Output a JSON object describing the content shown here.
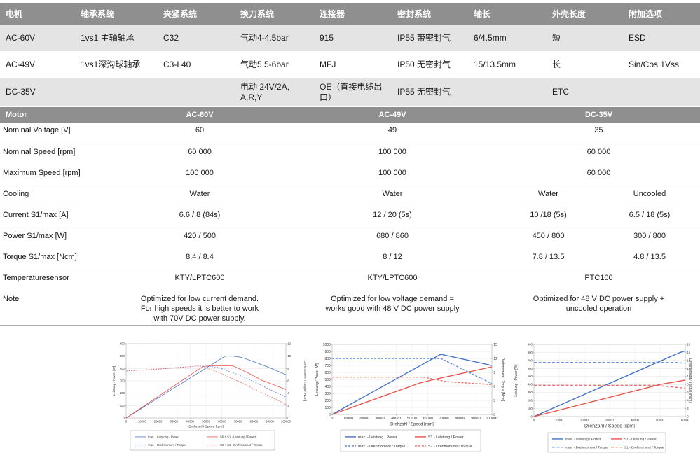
{
  "options_table": {
    "headers": [
      "电机",
      "轴承系统",
      "夹紧系统",
      "换刀系统",
      "连接器",
      "密封系统",
      "轴长",
      "外壳长度",
      "附加选项"
    ],
    "rows": [
      [
        "AC-60V",
        "1vs1 主轴轴承",
        "C32",
        "气动4-4.5bar",
        "915",
        "IP55 带密封气",
        "6/4.5mm",
        "短",
        "ESD"
      ],
      [
        "AC-49V",
        "1vs1深沟球轴承",
        "C3-L40",
        "气动5.5-6bar",
        "MFJ",
        "IP50 无密封气",
        "15/13.5mm",
        "长",
        "Sin/Cos 1Vss"
      ],
      [
        "DC-35V",
        "",
        "",
        "电动 24V/2A,\nA,R,Y",
        "OE（直接电缆出口）",
        "IP55 无密封气",
        "",
        "ETC",
        ""
      ]
    ]
  },
  "spec_table": {
    "header": {
      "label": "Motor",
      "cols": [
        "AC-60V",
        "AC-49V",
        "DC-35V"
      ]
    },
    "rows": [
      {
        "label": "Nominal Voltage [V]",
        "values": [
          "60",
          "49",
          "35"
        ]
      },
      {
        "label": "Nominal Speed [rpm]",
        "values": [
          "60 000",
          "100 000",
          "60 000"
        ]
      },
      {
        "label": "Maximum Speed [rpm]",
        "values": [
          "100 000",
          "100 000",
          "60 000"
        ]
      },
      {
        "label": "Cooling",
        "values": [
          "Water",
          "Water",
          "Water",
          "Uncooled"
        ]
      },
      {
        "label": "Current S1/max [A]",
        "values": [
          "6.6 / 8 (84s)",
          "12 / 20 (5s)",
          "10 /18 (5s)",
          "6.5 / 18 (5s)"
        ]
      },
      {
        "label": "Power S1/max [W]",
        "values": [
          "420 / 500",
          "680 / 860",
          "450 / 800",
          "300 / 800"
        ]
      },
      {
        "label": "Torque S1/max [Ncm]",
        "values": [
          "8.4 / 8.4",
          "8 / 12",
          "7.8 / 13.5",
          "4.8 / 13.5"
        ]
      },
      {
        "label": "Temperaturesensor",
        "values": [
          "KTY/LPTC600",
          "KTY/LPTC600",
          "PTC100"
        ]
      },
      {
        "label": "Note",
        "values": [
          "Optimized for low current demand.\nFor high speeds it is better to work\nwith 70V DC power supply.",
          "Optimized for low voltage demand =\nworks good with 48 V DC power supply",
          "Optimized for 48 V DC power supply +\nuncooled operation"
        ]
      }
    ]
  },
  "chart_data": [
    {
      "type": "line",
      "title": "AC-60V performance",
      "xlabel": "Drehzahl / Speed [rpm]",
      "ylabel_left": "Leistung / Power [W]",
      "ylabel_right": "Drehmoment / Torque [Ncm]",
      "x_range": [
        0,
        100000
      ],
      "x_step": 10000,
      "left_range": [
        0,
        600
      ],
      "left_step": 100,
      "right_range": [
        0,
        12
      ],
      "right_step": 2,
      "grid": true,
      "legend_position": "bottom",
      "series": [
        {
          "name": "max. - Leistung / Power",
          "axis": "left",
          "style": "solid",
          "color": "#4472c8",
          "points": [
            [
              0,
              0
            ],
            [
              62000,
              500
            ],
            [
              67000,
              500
            ],
            [
              72000,
              490
            ],
            [
              80000,
              455
            ],
            [
              90000,
              405
            ],
            [
              100000,
              350
            ]
          ]
        },
        {
          "name": "S6 + S1 - Leistung / Power",
          "axis": "left",
          "style": "solid",
          "color": "#e8534b",
          "points": [
            [
              0,
              0
            ],
            [
              48000,
              415
            ],
            [
              52000,
              421
            ],
            [
              67000,
              421
            ],
            [
              75000,
              373
            ],
            [
              85000,
              305
            ],
            [
              100000,
              230
            ]
          ]
        },
        {
          "name": "max. - Drehmoment / Torque",
          "axis": "right",
          "style": "dashed",
          "color": "#5b82dd",
          "points": [
            [
              0,
              7.6
            ],
            [
              20000,
              7.9
            ],
            [
              35000,
              8.2
            ],
            [
              45000,
              8.4
            ],
            [
              52000,
              8.35
            ],
            [
              58000,
              8.15
            ],
            [
              70000,
              7.0
            ],
            [
              80000,
              5.85
            ],
            [
              90000,
              4.6
            ],
            [
              100000,
              3.4
            ]
          ]
        },
        {
          "name": "S6 + S1 - Drehmoment / Torque",
          "axis": "right",
          "style": "dashed",
          "color": "#ef6f68",
          "points": [
            [
              0,
              7.6
            ],
            [
              20000,
              7.9
            ],
            [
              35000,
              8.2
            ],
            [
              45000,
              8.4
            ],
            [
              48000,
              8.3
            ],
            [
              60000,
              7.15
            ],
            [
              70000,
              5.95
            ],
            [
              80000,
              4.7
            ],
            [
              90000,
              3.5
            ],
            [
              100000,
              2.2
            ]
          ]
        }
      ]
    },
    {
      "type": "line",
      "title": "AC-49V performance",
      "xlabel": "Drehzahl / Speed [rpm]",
      "ylabel_left": "Leistung / Power [W]",
      "ylabel_right": "Drehmoment / Torque [Ncm]",
      "x_range": [
        0,
        100000
      ],
      "x_step": 10000,
      "left_range": [
        0,
        1000
      ],
      "left_step": 100,
      "right_range": [
        0,
        15
      ],
      "right_step": 3,
      "grid": true,
      "legend_position": "bottom",
      "series": [
        {
          "name": "max. - Leistung / Power",
          "axis": "left",
          "style": "solid",
          "color": "#4472c8",
          "points": [
            [
              0,
              0
            ],
            [
              68000,
              860
            ],
            [
              100000,
              700
            ]
          ]
        },
        {
          "name": "S1 - Leistung / Power",
          "axis": "left",
          "style": "solid",
          "color": "#e8534b",
          "points": [
            [
              0,
              0
            ],
            [
              55000,
              450
            ],
            [
              63000,
              495
            ],
            [
              100000,
              680
            ]
          ]
        },
        {
          "name": "max. - Drehmoment / Torque",
          "axis": "right",
          "style": "dashed",
          "color": "#5b82dd",
          "points": [
            [
              0,
              12
            ],
            [
              68000,
              12
            ],
            [
              100000,
              6.6
            ]
          ]
        },
        {
          "name": "S1 - Drehmoment / Torque",
          "axis": "right",
          "style": "dashed",
          "color": "#ef6f68",
          "points": [
            [
              0,
              8
            ],
            [
              57000,
              8
            ],
            [
              72000,
              7.0
            ],
            [
              100000,
              6.4
            ]
          ]
        }
      ]
    },
    {
      "type": "line",
      "title": "DC-35V performance",
      "xlabel": "Drehzahl / Speed [rpm]",
      "ylabel_left": "Leistung / Power [W]",
      "ylabel_right": "Drehmoment / Torque [Ncm]",
      "x_range": [
        0,
        60000
      ],
      "x_step": 10000,
      "left_range": [
        0,
        900
      ],
      "left_step": 100,
      "right_range": [
        0,
        18
      ],
      "right_step": 2,
      "grid": true,
      "legend_position": "bottom",
      "series": [
        {
          "name": "max. - Leistung / Power",
          "axis": "left",
          "style": "solid",
          "color": "#4472c8",
          "points": [
            [
              0,
              0
            ],
            [
              55000,
              760
            ],
            [
              58000,
              800
            ],
            [
              60000,
              820
            ]
          ]
        },
        {
          "name": "S1 - Leistung / Power",
          "axis": "left",
          "style": "solid",
          "color": "#e8534b",
          "points": [
            [
              0,
              0
            ],
            [
              50000,
              400
            ],
            [
              60000,
              455
            ]
          ]
        },
        {
          "name": "max. - Drehmoment / Torque",
          "axis": "right",
          "style": "dashed",
          "color": "#5b82dd",
          "points": [
            [
              0,
              13.5
            ],
            [
              56000,
              13.5
            ],
            [
              60000,
              13.3
            ]
          ]
        },
        {
          "name": "S1 - Drehmoment / Torque",
          "axis": "right",
          "style": "dashed",
          "color": "#ef6f68",
          "points": [
            [
              0,
              7.8
            ],
            [
              48000,
              7.8
            ],
            [
              60000,
              7.1
            ]
          ]
        }
      ]
    }
  ],
  "colors": {
    "header_bg": "#8f8f8f",
    "row_alt_bg": "#e4e4e4",
    "separator": "#ababab",
    "line_blue": "#4472c8",
    "line_red": "#e8534b"
  }
}
